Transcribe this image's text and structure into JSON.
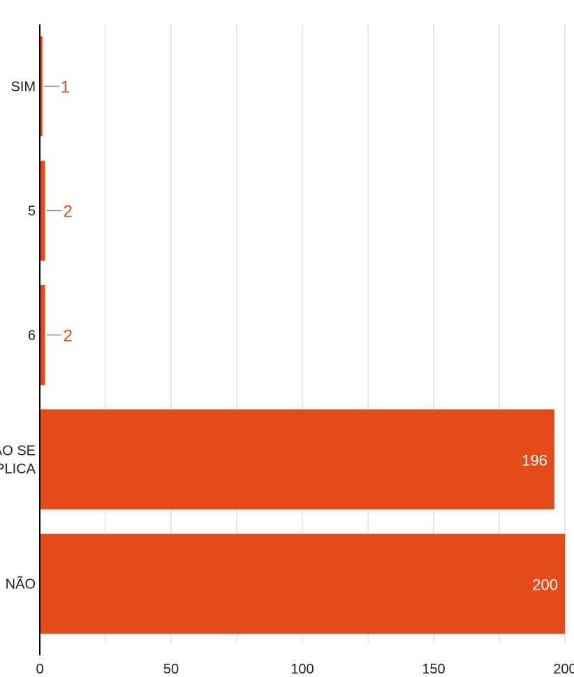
{
  "chart_data": {
    "type": "bar",
    "orientation": "horizontal",
    "categories": [
      "SIM",
      "5",
      "6",
      "NÃO SE APLICA",
      "NÃO"
    ],
    "values": [
      1,
      2,
      2,
      196,
      200
    ],
    "xlim": [
      0,
      200
    ],
    "xticks": [
      "0",
      "50",
      "100",
      "150",
      "200"
    ],
    "grid": true,
    "bar_color": "#E34C1A",
    "outside_label_color": "#E34C1A",
    "inside_label_color": "#FFFFFF",
    "gridline_color": "#CCCCCC",
    "axis_color": "#000000"
  }
}
